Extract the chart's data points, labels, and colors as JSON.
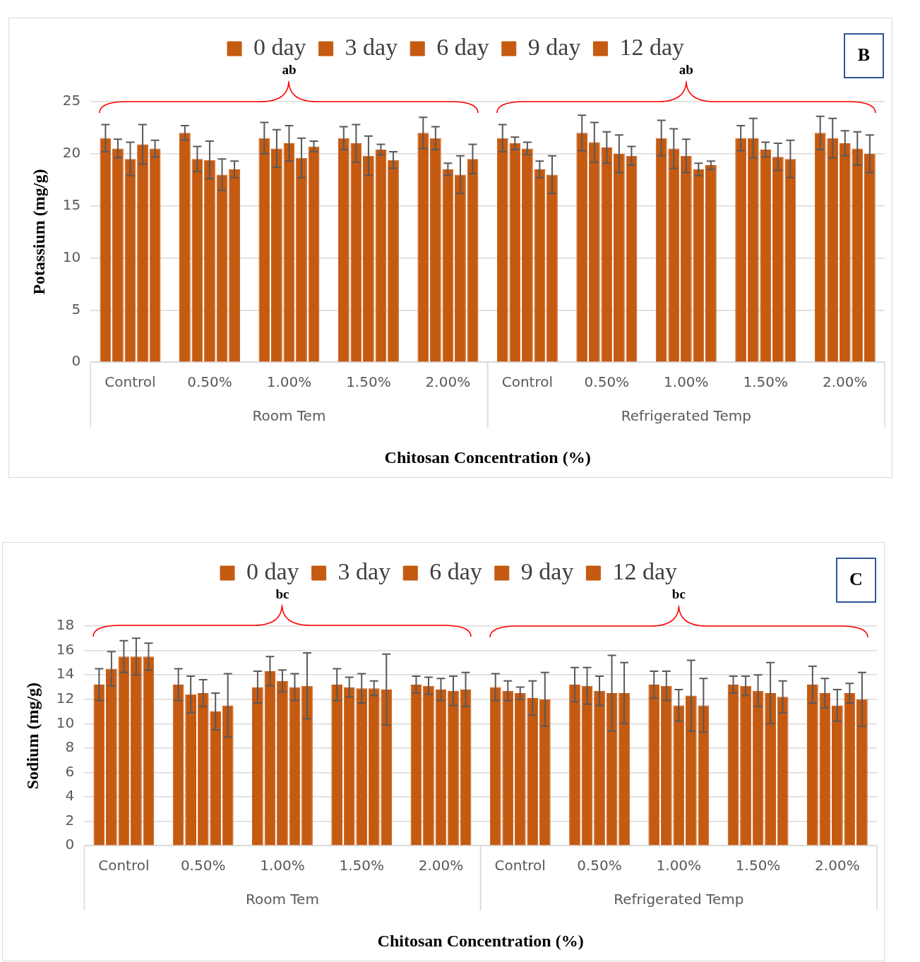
{
  "chart_data": [
    {
      "type": "bar",
      "ylabel": "Potassium (mg/g)",
      "xlabel": "Chitosan Concentration (%)",
      "categories": [
        "Control",
        "0.50%",
        "1.00%",
        "1.50%",
        "2.00%",
        "Control",
        "0.50%",
        "1.00%",
        "1.50%",
        "2.00%"
      ],
      "series": [
        {
          "name": "0 day",
          "color": "#c55a11",
          "values": [
            21.5,
            22,
            21.5,
            21.5,
            22,
            21.5,
            22,
            21.5,
            21.5,
            22
          ],
          "errors": [
            1.3,
            0.7,
            1.5,
            1.1,
            1.5,
            1.3,
            1.7,
            1.7,
            1.2,
            1.6
          ]
        },
        {
          "name": "3 day",
          "color": "#c55a11",
          "values": [
            20.5,
            19.5,
            20.5,
            21,
            21.5,
            21,
            21.1,
            20.5,
            21.5,
            21.5
          ],
          "errors": [
            0.9,
            1.2,
            1.8,
            1.8,
            1.1,
            0.6,
            1.9,
            1.9,
            1.9,
            1.9
          ]
        },
        {
          "name": "6 day",
          "color": "#c55a11",
          "values": [
            19.5,
            19.4,
            21,
            19.8,
            18.5,
            20.5,
            20.6,
            19.8,
            20.4,
            21
          ],
          "errors": [
            1.6,
            1.8,
            1.7,
            1.9,
            0.6,
            0.6,
            1.5,
            1.6,
            0.7,
            1.2
          ]
        },
        {
          "name": "9 day",
          "color": "#c55a11",
          "values": [
            20.9,
            18,
            19.6,
            20.4,
            18,
            18.5,
            20,
            18.5,
            19.7,
            20.5
          ],
          "errors": [
            1.9,
            1.5,
            1.9,
            0.5,
            1.8,
            0.8,
            1.8,
            0.6,
            1.3,
            1.6
          ]
        },
        {
          "name": "12 day",
          "color": "#c55a11",
          "values": [
            20.5,
            18.5,
            20.7,
            19.4,
            19.5,
            18,
            19.8,
            18.9,
            19.5,
            20
          ],
          "errors": [
            0.8,
            0.8,
            0.5,
            0.8,
            1.4,
            1.8,
            0.9,
            0.4,
            1.8,
            1.8
          ]
        }
      ],
      "ylim": [
        0,
        25
      ],
      "yticks": [
        0,
        5,
        10,
        15,
        20,
        25
      ],
      "grid": "y",
      "legend": "top",
      "annotations": [
        "B",
        "ab",
        "ab",
        "Room Tem",
        "Refrigerated Temp"
      ]
    },
    {
      "type": "bar",
      "ylabel": "Sodium (mg/g)",
      "xlabel": "Chitosan Concentration (%)",
      "categories": [
        "Control",
        "0.50%",
        "1.00%",
        "1.50%",
        "2.00%",
        "Control",
        "0.50%",
        "1.00%",
        "1.50%",
        "2.00%"
      ],
      "series": [
        {
          "name": "0 day",
          "color": "#c55a11",
          "values": [
            13.2,
            13.2,
            13,
            13.2,
            13.2,
            13,
            13.2,
            13.2,
            13.2,
            13.2
          ],
          "errors": [
            1.3,
            1.3,
            1.3,
            1.3,
            0.7,
            1.1,
            1.4,
            1.1,
            0.7,
            1.5
          ]
        },
        {
          "name": "3 day",
          "color": "#c55a11",
          "values": [
            14.5,
            12.4,
            14.3,
            13,
            13.1,
            12.7,
            13.1,
            13.1,
            13.1,
            12.5
          ],
          "errors": [
            1.4,
            1.5,
            1.2,
            0.8,
            0.7,
            0.8,
            1.5,
            1.2,
            0.8,
            1.2
          ]
        },
        {
          "name": "6 day",
          "color": "#c55a11",
          "values": [
            15.5,
            12.5,
            13.5,
            12.9,
            12.8,
            12.5,
            12.7,
            11.5,
            12.7,
            11.5
          ],
          "errors": [
            1.3,
            1.1,
            0.9,
            1.2,
            0.9,
            0.5,
            1.2,
            1.3,
            1.3,
            1.3
          ]
        },
        {
          "name": "9 day",
          "color": "#c55a11",
          "values": [
            15.5,
            11,
            13,
            12.9,
            12.7,
            12.1,
            12.5,
            12.3,
            12.5,
            12.5
          ],
          "errors": [
            1.5,
            1.5,
            1.1,
            0.6,
            1.2,
            1.4,
            3.1,
            2.9,
            2.5,
            0.8
          ]
        },
        {
          "name": "12 day",
          "color": "#c55a11",
          "values": [
            15.5,
            11.5,
            13.1,
            12.8,
            12.8,
            12,
            12.5,
            11.5,
            12.2,
            12
          ],
          "errors": [
            1.1,
            2.6,
            2.7,
            2.9,
            1.4,
            2.2,
            2.5,
            2.2,
            1.3,
            2.2
          ]
        }
      ],
      "ylim": [
        0,
        18
      ],
      "yticks": [
        0,
        2,
        4,
        6,
        8,
        10,
        12,
        14,
        16,
        18
      ],
      "grid": "y",
      "legend": "top",
      "annotations": [
        "C",
        "bc",
        "bc",
        "Room Tem",
        "Refrigerated Temp"
      ]
    }
  ]
}
